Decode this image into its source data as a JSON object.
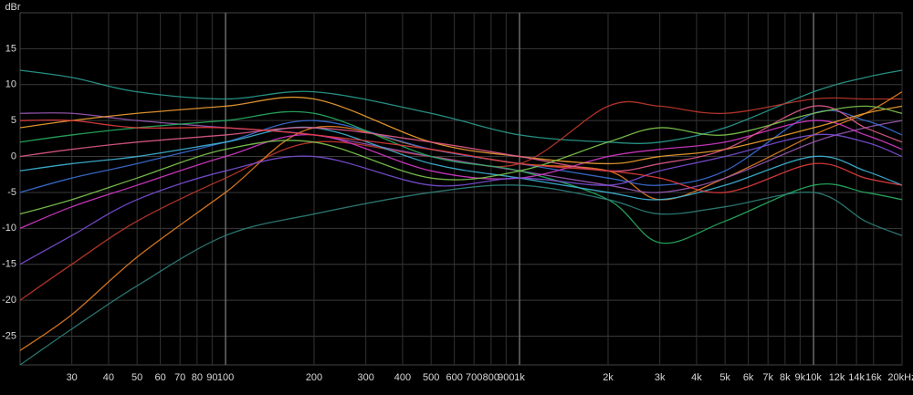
{
  "chart_data": {
    "type": "line",
    "y_label": "dBr",
    "xscale": "log",
    "grid": true,
    "xlim": [
      20,
      20000
    ],
    "ylim": [
      -29,
      20
    ],
    "yticks": [
      -25,
      -20,
      -15,
      -10,
      -5,
      0,
      5,
      10,
      15
    ],
    "xticks": [
      30,
      40,
      50,
      60,
      70,
      80,
      90,
      100,
      200,
      300,
      400,
      500,
      600,
      700,
      800,
      900,
      {
        "value": 1000,
        "label": "1k"
      },
      {
        "value": 2000,
        "label": "2k"
      },
      {
        "value": 3000,
        "label": "3k"
      },
      {
        "value": 4000,
        "label": "4k"
      },
      {
        "value": 5000,
        "label": "5k"
      },
      {
        "value": 6000,
        "label": "6k"
      },
      {
        "value": 7000,
        "label": "7k"
      },
      {
        "value": 8000,
        "label": "8k"
      },
      {
        "value": 9000,
        "label": "9k"
      },
      {
        "value": 10000,
        "label": "10k"
      },
      {
        "value": 12000,
        "label": "12k"
      },
      {
        "value": 14000,
        "label": "14k"
      },
      {
        "value": 16000,
        "label": "16k"
      },
      {
        "value": 20000,
        "label": "20kHz"
      }
    ],
    "x": [
      20,
      30,
      50,
      100,
      200,
      500,
      1000,
      2000,
      3000,
      5000,
      10000,
      15000,
      20000
    ],
    "series": [
      {
        "color": "#2a9d8f",
        "values": [
          12,
          11,
          9,
          8,
          9,
          6,
          3,
          2,
          2,
          4,
          9,
          11,
          12
        ]
      },
      {
        "color": "#c0392b",
        "values": [
          -20,
          -15,
          -9,
          -3,
          2,
          0,
          -1,
          7,
          7,
          6,
          8,
          8,
          8
        ]
      },
      {
        "color": "#e67e22",
        "values": [
          -27,
          -22,
          -14,
          -5,
          4,
          1,
          -1,
          -2,
          -6,
          -3,
          3,
          6,
          9
        ]
      },
      {
        "color": "#9b59b6",
        "values": [
          6,
          6,
          5,
          4,
          3,
          0,
          -2,
          -4,
          -5,
          -3,
          2,
          4,
          5
        ]
      },
      {
        "color": "#3b6fd4",
        "values": [
          -5,
          -3,
          -1,
          2,
          5,
          1,
          -1,
          -3,
          -4,
          -2,
          6,
          5,
          3
        ]
      },
      {
        "color": "#27ae60",
        "values": [
          2,
          3,
          4,
          5,
          6,
          0,
          -2,
          -6,
          -12,
          -9,
          -4,
          -5,
          -6
        ]
      },
      {
        "color": "#d63ac9",
        "values": [
          -10,
          -7,
          -4,
          0,
          3,
          -2,
          -3,
          0,
          1,
          2,
          5,
          3,
          1
        ]
      },
      {
        "color": "#f0a030",
        "values": [
          4,
          5,
          6,
          7,
          8,
          2,
          0,
          -1,
          0,
          1,
          4,
          6,
          7
        ]
      },
      {
        "color": "#3fb6d6",
        "values": [
          -2,
          -1,
          0,
          2,
          4,
          -1,
          -3,
          -5,
          -6,
          -4,
          0,
          -2,
          -4
        ]
      },
      {
        "color": "#2f7f7a",
        "values": [
          -29,
          -24,
          -18,
          -11,
          -8,
          -5,
          -4,
          -6,
          -8,
          -7,
          -5,
          -9,
          -11
        ]
      },
      {
        "color": "#e05a8a",
        "values": [
          0,
          1,
          2,
          3,
          4,
          2,
          0,
          -2,
          -1,
          1,
          7,
          4,
          2
        ]
      },
      {
        "color": "#7ec850",
        "values": [
          -8,
          -6,
          -3,
          1,
          2,
          -3,
          -2,
          2,
          4,
          3,
          6,
          7,
          6
        ]
      },
      {
        "color": "#7b4fd6",
        "values": [
          -15,
          -11,
          -6,
          -2,
          0,
          -4,
          -3,
          -4,
          -2,
          0,
          3,
          2,
          0
        ]
      },
      {
        "color": "#e23c3c",
        "values": [
          5,
          5,
          4,
          4,
          3,
          1,
          -1,
          -2,
          -3,
          -5,
          -1,
          -3,
          -4
        ]
      }
    ]
  }
}
